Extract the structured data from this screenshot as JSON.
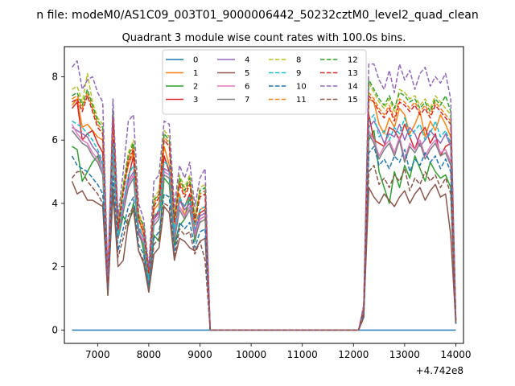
{
  "figure": {
    "suptitle": "n file: modeM0/AS1C09_003T01_9000006442_50232cztM0_level2_quad_clean",
    "title": "Quadrant 3 module wise count rates with 100.0s bins.",
    "x_offset_label": "+4.742e8"
  },
  "chart_data": {
    "type": "line",
    "title": "Quadrant 3 module wise count rates with 100.0s bins.",
    "xlabel": "",
    "ylabel": "",
    "x_offset": 474200000,
    "xlim": [
      6350,
      14150
    ],
    "ylim": [
      -0.42,
      8.95
    ],
    "xticks": [
      7000,
      8000,
      9000,
      10000,
      11000,
      12000,
      13000,
      14000
    ],
    "xtick_labels": [
      "7000",
      "8000",
      "9000",
      "10000",
      "11000",
      "12000",
      "13000",
      "14000"
    ],
    "yticks": [
      0,
      2,
      4,
      6,
      8
    ],
    "ytick_labels": [
      "0",
      "2",
      "4",
      "6",
      "8"
    ],
    "grid": false,
    "legend": {
      "placement": "top-center",
      "columns": 4
    },
    "x_segments": [
      {
        "start": 6500,
        "end": 9100,
        "step": 100
      },
      {
        "start": 9200,
        "end": 12100,
        "step": 100
      },
      {
        "start": 12200,
        "end": 14000,
        "step": 100
      }
    ],
    "series": [
      {
        "name": "0",
        "color": "#1f77b4",
        "dash": "solid",
        "seg1": [
          0,
          0,
          0,
          0,
          0,
          0,
          0,
          0,
          0,
          0,
          0,
          0,
          0,
          0,
          0,
          0,
          0,
          0,
          0,
          0,
          0,
          0,
          0,
          0,
          0,
          0,
          0
        ],
        "seg3": [
          0,
          0,
          0,
          0,
          0,
          0,
          0,
          0,
          0,
          0,
          0,
          0,
          0,
          0,
          0,
          0,
          0,
          0,
          0
        ]
      },
      {
        "name": "1",
        "color": "#ff7f0e",
        "dash": "solid",
        "seg1": [
          7.1,
          7.3,
          6.4,
          6.5,
          6.3,
          6.1,
          6.0,
          1.5,
          6.8,
          3.2,
          4.5,
          5.2,
          5.6,
          3.5,
          3.0,
          1.7,
          3.8,
          4.0,
          5.8,
          5.2,
          3.2,
          4.3,
          3.6,
          4.2,
          3.3,
          3.8,
          3.9
        ],
        "seg3": [
          0.6,
          7.3,
          7.2,
          6.5,
          6.2,
          6.7,
          6.4,
          7.0,
          6.8,
          6.2,
          6.5,
          6.9,
          6.1,
          6.6,
          6.3,
          6.8,
          6.5,
          6.1,
          0.2
        ]
      },
      {
        "name": "2",
        "color": "#2ca02c",
        "dash": "solid",
        "seg1": [
          5.8,
          5.7,
          4.7,
          5.0,
          5.3,
          5.5,
          5.0,
          1.3,
          5.5,
          2.9,
          3.6,
          3.3,
          4.0,
          3.2,
          2.5,
          1.4,
          3.0,
          2.8,
          4.8,
          4.6,
          2.7,
          3.3,
          3.5,
          4.2,
          2.8,
          3.5,
          3.6
        ],
        "seg3": [
          0.5,
          6.0,
          6.3,
          5.0,
          4.5,
          4.0,
          5.0,
          4.5,
          5.2,
          4.8,
          5.5,
          5.1,
          4.7,
          5.3,
          5.0,
          4.8,
          4.9,
          4.5,
          0.2
        ]
      },
      {
        "name": "3",
        "color": "#d62728",
        "dash": "solid",
        "seg1": [
          7.0,
          7.2,
          6.0,
          6.2,
          6.3,
          5.9,
          5.6,
          1.3,
          6.0,
          3.1,
          3.9,
          4.8,
          5.5,
          3.0,
          2.8,
          1.7,
          3.5,
          3.8,
          5.5,
          5.0,
          3.0,
          4.1,
          3.9,
          4.3,
          3.0,
          3.7,
          3.8
        ],
        "seg3": [
          0.6,
          6.8,
          6.0,
          5.9,
          5.8,
          6.4,
          6.3,
          6.0,
          6.5,
          6.1,
          5.7,
          6.2,
          6.4,
          5.9,
          6.2,
          5.5,
          5.8,
          5.9,
          0.3
        ]
      },
      {
        "name": "4",
        "color": "#9467bd",
        "dash": "solid",
        "seg1": [
          6.4,
          6.3,
          6.2,
          6.1,
          5.8,
          5.6,
          5.2,
          1.5,
          5.8,
          3.0,
          4.0,
          4.7,
          5.0,
          3.2,
          2.9,
          1.6,
          3.5,
          3.7,
          5.1,
          5.0,
          3.0,
          4.1,
          3.8,
          4.0,
          3.1,
          3.6,
          3.7
        ],
        "seg3": [
          0.6,
          6.4,
          6.6,
          6.3,
          5.9,
          6.2,
          6.1,
          6.5,
          6.0,
          6.4,
          6.2,
          5.8,
          6.0,
          6.3,
          6.1,
          5.9,
          6.2,
          5.8,
          0.3
        ]
      },
      {
        "name": "5",
        "color": "#8c564b",
        "dash": "solid",
        "seg1": [
          4.7,
          4.3,
          4.4,
          4.1,
          4.1,
          4.0,
          3.9,
          1.1,
          4.3,
          2.0,
          2.2,
          3.4,
          3.8,
          2.5,
          2.1,
          1.2,
          2.4,
          2.6,
          3.9,
          3.7,
          2.2,
          2.9,
          2.8,
          2.6,
          2.5,
          2.8,
          2.9
        ],
        "seg3": [
          0.4,
          4.5,
          4.2,
          4.0,
          4.3,
          4.1,
          3.9,
          4.2,
          4.4,
          4.0,
          4.3,
          4.5,
          4.1,
          4.4,
          4.6,
          4.2,
          4.3,
          3.0,
          0.2
        ]
      },
      {
        "name": "6",
        "color": "#e377c2",
        "dash": "solid",
        "seg1": [
          6.5,
          6.2,
          6.0,
          5.9,
          5.6,
          5.4,
          5.0,
          1.4,
          5.7,
          2.9,
          3.8,
          4.6,
          4.9,
          3.1,
          2.8,
          1.5,
          3.4,
          3.6,
          5.0,
          4.9,
          2.9,
          3.9,
          3.6,
          3.9,
          3.0,
          3.5,
          3.6
        ],
        "seg3": [
          0.6,
          6.3,
          6.0,
          5.5,
          5.8,
          6.0,
          5.6,
          6.1,
          5.4,
          5.9,
          5.7,
          6.0,
          5.5,
          5.8,
          6.0,
          5.6,
          5.7,
          5.3,
          0.3
        ]
      },
      {
        "name": "7",
        "color": "#7f7f7f",
        "dash": "solid",
        "seg1": [
          6.3,
          6.1,
          5.9,
          5.8,
          5.5,
          5.3,
          4.9,
          1.4,
          5.6,
          2.9,
          3.7,
          4.5,
          4.8,
          3.0,
          2.7,
          1.5,
          3.3,
          3.5,
          4.9,
          4.8,
          2.8,
          3.8,
          3.5,
          3.8,
          2.9,
          3.4,
          3.5
        ],
        "seg3": [
          0.6,
          6.2,
          5.9,
          5.4,
          5.7,
          5.9,
          5.5,
          6.0,
          5.3,
          5.8,
          5.6,
          5.9,
          5.4,
          5.7,
          5.9,
          5.5,
          5.6,
          5.2,
          0.3
        ]
      },
      {
        "name": "8",
        "color": "#bcbd22",
        "dash": "dashed",
        "seg1": [
          7.6,
          7.7,
          7.2,
          8.1,
          7.2,
          6.7,
          6.5,
          1.6,
          7.0,
          3.4,
          4.6,
          5.6,
          6.0,
          3.7,
          3.3,
          1.9,
          4.2,
          4.4,
          6.3,
          6.1,
          3.6,
          4.9,
          4.5,
          4.9,
          3.6,
          4.5,
          4.6
        ],
        "seg3": [
          0.7,
          7.8,
          7.5,
          7.2,
          7.0,
          7.3,
          6.9,
          7.6,
          7.5,
          7.3,
          7.4,
          7.1,
          7.3,
          7.0,
          7.4,
          7.2,
          7.0,
          6.8,
          0.3
        ]
      },
      {
        "name": "9",
        "color": "#17becf",
        "dash": "dashed",
        "seg1": [
          6.6,
          6.5,
          6.4,
          6.2,
          6.0,
          5.7,
          5.3,
          1.5,
          5.9,
          3.0,
          4.0,
          4.9,
          5.2,
          3.3,
          2.9,
          1.6,
          3.6,
          3.8,
          5.3,
          5.2,
          3.1,
          4.2,
          3.9,
          4.2,
          3.2,
          3.8,
          3.9
        ],
        "seg3": [
          0.6,
          6.6,
          6.8,
          6.1,
          6.3,
          6.0,
          6.4,
          6.2,
          6.7,
          6.1,
          6.3,
          6.5,
          6.0,
          6.2,
          6.6,
          6.1,
          6.3,
          5.9,
          0.3
        ]
      },
      {
        "name": "10",
        "color": "#1f77b4",
        "dash": "dashed",
        "seg1": [
          5.5,
          5.2,
          5.1,
          5.0,
          4.8,
          4.6,
          4.3,
          1.2,
          4.9,
          2.5,
          3.2,
          3.9,
          4.2,
          2.7,
          2.4,
          1.3,
          2.9,
          3.1,
          4.3,
          4.2,
          2.5,
          3.4,
          3.2,
          3.4,
          2.6,
          3.1,
          3.2
        ],
        "seg3": [
          0.5,
          5.6,
          5.8,
          5.2,
          5.4,
          5.1,
          5.5,
          5.3,
          5.7,
          5.0,
          5.4,
          5.2,
          5.6,
          5.3,
          5.5,
          5.1,
          5.4,
          5.0,
          0.2
        ]
      },
      {
        "name": "11",
        "color": "#ff7f0e",
        "dash": "dashed",
        "seg1": [
          7.3,
          7.4,
          7.0,
          7.5,
          7.0,
          6.5,
          6.3,
          1.6,
          6.8,
          3.3,
          4.4,
          5.4,
          5.8,
          3.6,
          3.2,
          1.8,
          4.0,
          4.3,
          6.1,
          5.9,
          3.5,
          4.7,
          4.3,
          4.7,
          3.5,
          4.3,
          4.4
        ],
        "seg3": [
          0.7,
          7.5,
          7.3,
          7.0,
          6.8,
          7.1,
          6.7,
          7.3,
          7.2,
          7.0,
          7.2,
          6.9,
          7.1,
          6.8,
          7.2,
          7.0,
          6.8,
          6.6,
          0.3
        ]
      },
      {
        "name": "12",
        "color": "#2ca02c",
        "dash": "dashed",
        "seg1": [
          7.4,
          7.5,
          7.1,
          7.6,
          7.1,
          6.6,
          6.4,
          1.6,
          6.9,
          3.3,
          4.5,
          5.5,
          5.9,
          3.6,
          3.3,
          1.8,
          4.1,
          4.3,
          6.2,
          6.0,
          3.5,
          4.8,
          4.4,
          4.8,
          3.5,
          4.4,
          4.5
        ],
        "seg3": [
          0.7,
          7.9,
          7.6,
          7.3,
          7.1,
          7.4,
          7.0,
          7.5,
          7.4,
          7.2,
          7.3,
          7.0,
          7.2,
          6.9,
          7.3,
          7.1,
          7.4,
          6.9,
          0.3
        ]
      },
      {
        "name": "13",
        "color": "#d62728",
        "dash": "dashed",
        "seg1": [
          7.2,
          7.3,
          6.9,
          7.4,
          6.9,
          6.4,
          6.2,
          1.5,
          6.7,
          3.2,
          4.3,
          5.3,
          5.7,
          3.5,
          3.1,
          1.8,
          3.9,
          4.2,
          6.0,
          5.8,
          3.4,
          4.6,
          4.2,
          4.6,
          3.4,
          4.2,
          4.3
        ],
        "seg3": [
          0.7,
          7.4,
          7.2,
          6.9,
          6.7,
          7.0,
          6.6,
          7.2,
          7.1,
          6.9,
          7.1,
          6.8,
          7.0,
          6.7,
          7.1,
          6.9,
          6.7,
          6.5,
          0.3
        ]
      },
      {
        "name": "14",
        "color": "#9467bd",
        "dash": "dashed",
        "seg1": [
          8.3,
          8.5,
          7.6,
          7.9,
          8.0,
          7.5,
          7.2,
          1.7,
          7.3,
          3.6,
          5.0,
          6.6,
          6.8,
          4.0,
          3.5,
          2.0,
          4.7,
          4.9,
          6.6,
          6.5,
          3.9,
          5.2,
          4.8,
          5.3,
          3.9,
          4.8,
          5.1
        ],
        "seg3": [
          0.8,
          8.4,
          8.4,
          7.9,
          7.6,
          8.2,
          7.5,
          8.4,
          7.9,
          8.2,
          7.6,
          8.1,
          8.3,
          7.7,
          8.0,
          7.8,
          8.1,
          7.3,
          0.3
        ]
      },
      {
        "name": "15",
        "color": "#8c564b",
        "dash": "dashed",
        "seg1": [
          4.8,
          5.0,
          5.0,
          4.7,
          4.5,
          4.3,
          4.0,
          1.1,
          4.5,
          2.3,
          2.9,
          3.6,
          3.9,
          2.5,
          2.2,
          1.2,
          2.7,
          2.9,
          4.0,
          3.9,
          2.3,
          3.2,
          3.0,
          3.1,
          2.4,
          2.8,
          2.2
        ],
        "seg3": [
          0.4,
          5.0,
          5.2,
          4.6,
          4.8,
          4.5,
          4.9,
          4.7,
          5.1,
          4.4,
          4.8,
          4.6,
          5.0,
          4.7,
          4.9,
          4.5,
          4.8,
          4.3,
          0.2
        ]
      }
    ]
  }
}
